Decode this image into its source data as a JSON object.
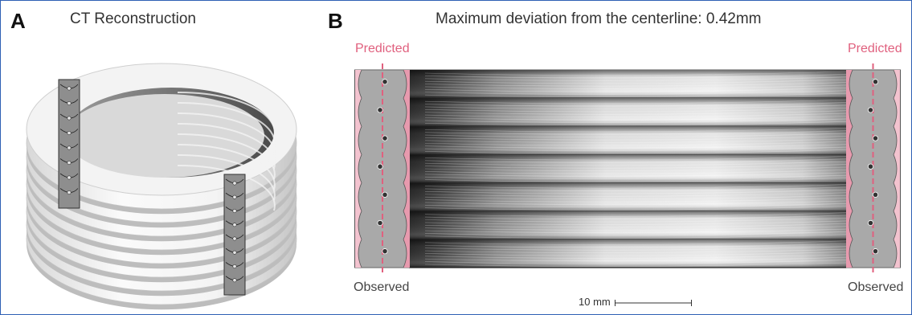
{
  "panel_a": {
    "letter": "A",
    "title": "CT Reconstruction",
    "ring_count": 8
  },
  "panel_b": {
    "letter": "B",
    "title": "Maximum deviation from the centerline: 0.42mm",
    "predicted_label_left": "Predicted",
    "predicted_label_right": "Predicted",
    "observed_label_left": "Observed",
    "observed_label_right": "Observed",
    "scale_bar_label": "10 mm",
    "stripe_count": 7
  },
  "colors": {
    "frame_border": "#2f5fb4",
    "predicted_pink": "#e0607e",
    "pink_fill": "#f3c3cf",
    "cross_section_grey": "#a9a9a9",
    "point_dark": "#333333"
  }
}
